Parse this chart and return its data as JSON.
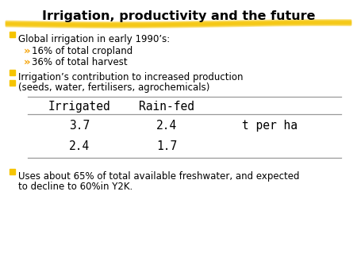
{
  "title": "Irrigation, productivity and the future",
  "title_fontsize": 11.5,
  "title_fontweight": "bold",
  "bg_color": "#ffffff",
  "text_color": "#000000",
  "bullet_color": "#F5C400",
  "bullet1": "Global irrigation in early 1990’s:",
  "sub1a": "16% of total cropland",
  "sub1b": "36% of total harvest",
  "bullet2": "Irrigation’s contribution to increased production",
  "bullet3": "(seeds, water, fertilisers, agrochemicals)",
  "table_header": [
    "Irrigated",
    "Rain-fed"
  ],
  "table_row1": [
    "3.7",
    "2.4",
    "t per ha"
  ],
  "table_row2": [
    "2.4",
    "1.7"
  ],
  "bullet4_line1": "Uses about 65% of total available freshwater, and expected",
  "bullet4_line2": "to decline to 60%in Y2K.",
  "font_family": "monospace",
  "body_fontsize": 8.5,
  "table_fontsize": 10.5,
  "sub_fontsize": 8.5
}
